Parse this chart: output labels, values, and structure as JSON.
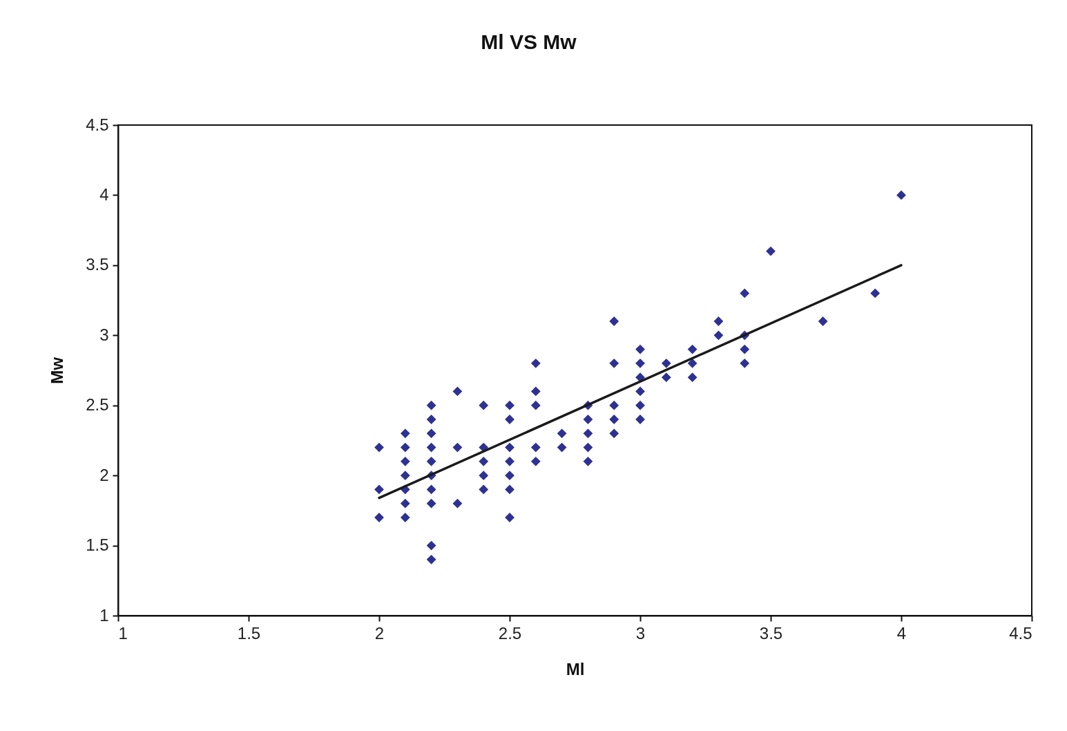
{
  "chart_data": {
    "type": "scatter",
    "title": "Ml VS Mw",
    "xlabel": "Ml",
    "ylabel": "Mw",
    "marker": "diamond",
    "xlim": [
      1,
      4.5
    ],
    "xticks": [
      1,
      1.5,
      2,
      2.5,
      3,
      3.5,
      4,
      4.5
    ],
    "ylim": [
      1,
      4.5
    ],
    "yticks": [
      1,
      1.5,
      2,
      2.5,
      3,
      3.5,
      4,
      4.5
    ],
    "series": [
      {
        "color": "#2e3192",
        "x": [
          2,
          2,
          2,
          2.1,
          2.1,
          2.1,
          2.1,
          2.1,
          2.1,
          2.1,
          2.2,
          2.2,
          2.2,
          2.2,
          2.2,
          2.2,
          2.2,
          2.2,
          2.2,
          2.2,
          2.3,
          2.3,
          2.3,
          2.4,
          2.4,
          2.4,
          2.4,
          2.4,
          2.5,
          2.5,
          2.5,
          2.5,
          2.5,
          2.5,
          2.5,
          2.6,
          2.6,
          2.6,
          2.6,
          2.6,
          2.7,
          2.7,
          2.8,
          2.8,
          2.8,
          2.8,
          2.8,
          2.9,
          2.9,
          2.9,
          2.9,
          2.9,
          3,
          3,
          3,
          3,
          3,
          3,
          3.1,
          3.1,
          3.2,
          3.2,
          3.2,
          3.3,
          3.3,
          3.4,
          3.4,
          3.4,
          3.4,
          3.5,
          3.7,
          3.9,
          4
        ],
        "values": [
          2.2,
          1.9,
          1.7,
          2.3,
          2.2,
          2.1,
          2,
          1.9,
          1.8,
          1.7,
          2.5,
          2.4,
          2.3,
          2.2,
          2.1,
          2,
          1.9,
          1.8,
          1.5,
          1.4,
          2.6,
          2.2,
          1.8,
          2.5,
          2.2,
          2.1,
          2,
          1.9,
          2.5,
          2.4,
          2.2,
          2.1,
          2,
          1.9,
          1.7,
          2.8,
          2.6,
          2.5,
          2.2,
          2.1,
          2.3,
          2.2,
          2.5,
          2.4,
          2.3,
          2.2,
          2.1,
          3.1,
          2.8,
          2.5,
          2.4,
          2.3,
          2.9,
          2.8,
          2.7,
          2.6,
          2.5,
          2.4,
          2.8,
          2.7,
          2.9,
          2.8,
          2.7,
          3.1,
          3,
          3.3,
          3,
          2.9,
          2.8,
          3.6,
          3.1,
          3.3,
          4
        ]
      },
      {
        "type": "line",
        "marker": "none",
        "color": "#1a1a1a",
        "x": [
          2,
          4
        ],
        "values": [
          1.84,
          3.5
        ]
      }
    ]
  }
}
